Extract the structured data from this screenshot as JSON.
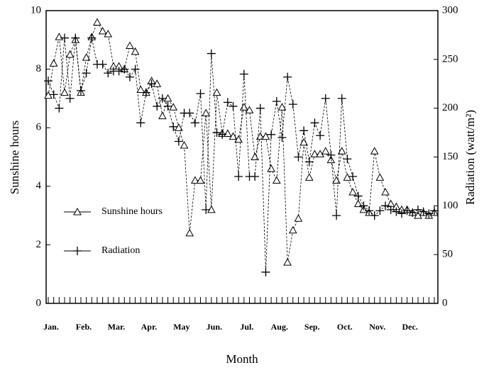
{
  "chart_data": {
    "type": "line",
    "categories": [
      "Jan.",
      null,
      null,
      null,
      null,
      null,
      "Feb.",
      null,
      null,
      null,
      null,
      null,
      "Mar.",
      null,
      null,
      null,
      null,
      null,
      "Apr.",
      null,
      null,
      null,
      null,
      null,
      "May",
      null,
      null,
      null,
      null,
      null,
      "Jun.",
      null,
      null,
      null,
      null,
      null,
      "Jul.",
      null,
      null,
      null,
      null,
      null,
      "Aug.",
      null,
      null,
      null,
      null,
      null,
      "Sep.",
      null,
      null,
      null,
      null,
      null,
      "Oct.",
      null,
      null,
      null,
      null,
      null,
      "Nov.",
      null,
      null,
      null,
      null,
      null,
      "Dec.",
      null,
      null,
      null,
      null,
      null
    ],
    "series": [
      {
        "name": "Sunshine hours",
        "color": "#000000",
        "marker": "triangle",
        "axis": "y",
        "values": [
          7.1,
          8.2,
          9.1,
          7.2,
          8.5,
          9.0,
          7.2,
          8.4,
          9.1,
          9.6,
          9.3,
          9.2,
          8.1,
          8.1,
          8.0,
          8.8,
          8.6,
          7.3,
          7.2,
          7.6,
          7.5,
          6.4,
          7.0,
          6.7,
          6.0,
          5.4,
          2.4,
          4.2,
          4.2,
          6.5,
          3.2,
          7.2,
          5.8,
          5.8,
          5.7,
          5.6,
          6.7,
          6.6,
          5.0,
          5.7,
          5.7,
          4.6,
          4.2,
          6.7,
          1.4,
          2.5,
          2.9,
          5.5,
          4.3,
          5.1,
          5.1,
          5.2,
          4.9,
          4.2,
          5.2,
          4.3,
          3.8,
          3.4,
          3.2,
          3.1,
          5.2,
          4.3,
          3.8,
          3.4,
          3.3,
          3.2,
          3.2,
          3.1,
          3.0,
          3.1,
          3.0,
          3.1
        ]
      },
      {
        "name": "Radiation",
        "color": "#000000",
        "marker": "plus",
        "axis": "y2",
        "values": [
          228,
          214,
          200,
          272,
          210,
          272,
          218,
          236,
          272,
          245,
          245,
          236,
          238,
          238,
          240,
          232,
          240,
          185,
          216,
          225,
          202,
          210,
          202,
          181,
          166,
          195,
          195,
          185,
          215,
          96,
          256,
          175,
          173,
          206,
          202,
          130,
          235,
          130,
          130,
          200,
          32,
          173,
          207,
          170,
          232,
          204,
          150,
          177,
          145,
          185,
          172,
          210,
          152,
          90,
          210,
          148,
          130,
          110,
          100,
          95,
          90,
          95,
          100,
          96,
          94,
          92,
          95,
          93,
          96,
          94,
          92,
          95
        ]
      }
    ],
    "xlabel": "Month",
    "ylabel": "Sunshine hours",
    "y2label": "Radiation (watt/m²)",
    "ylim": [
      0,
      10
    ],
    "yticks": [
      0,
      2,
      4,
      6,
      8,
      10
    ],
    "y2lim": [
      0,
      300
    ],
    "y2ticks": [
      0,
      50,
      100,
      150,
      200,
      250,
      300
    ],
    "legend": "left",
    "grid": false
  }
}
